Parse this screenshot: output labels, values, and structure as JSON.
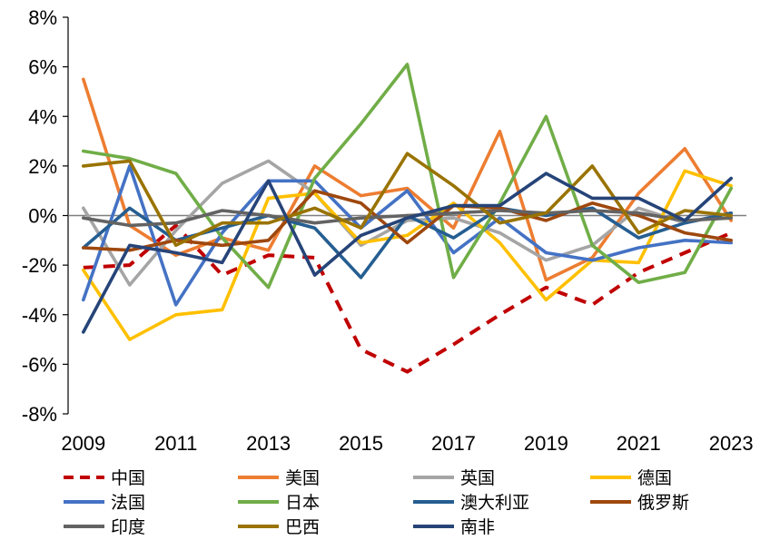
{
  "chart_data": {
    "type": "line",
    "title": "",
    "xlabel": "",
    "ylabel": "",
    "x": [
      2009,
      2010,
      2011,
      2012,
      2013,
      2014,
      2015,
      2016,
      2017,
      2018,
      2019,
      2020,
      2021,
      2022,
      2023
    ],
    "x_tick_labels": [
      "2009",
      "2011",
      "2013",
      "2015",
      "2017",
      "2019",
      "2021",
      "2023"
    ],
    "x_tick_values": [
      2009,
      2011,
      2013,
      2015,
      2017,
      2019,
      2021,
      2023
    ],
    "y_tick_values": [
      -8,
      -6,
      -4,
      -2,
      0,
      2,
      4,
      6,
      8
    ],
    "y_tick_labels": [
      "-8%",
      "-6%",
      "-4%",
      "-2%",
      "0%",
      "2%",
      "4%",
      "6%",
      "8%"
    ],
    "ylim": [
      -8,
      8
    ],
    "grid": false,
    "legend_position": "bottom",
    "series": [
      {
        "name": "中国",
        "color": "#c00000",
        "dash": "dashed",
        "values": [
          -2.1,
          -2.0,
          -0.4,
          -2.4,
          -1.6,
          -1.7,
          -5.4,
          -6.3,
          -5.2,
          -4.0,
          -2.9,
          -3.6,
          -2.3,
          -1.5,
          -0.7
        ]
      },
      {
        "name": "美国",
        "color": "#ed7d31",
        "dash": "solid",
        "values": [
          5.5,
          -0.4,
          -1.6,
          -0.9,
          -1.4,
          2.0,
          0.8,
          1.1,
          -0.5,
          3.4,
          -2.6,
          -1.7,
          0.9,
          2.7,
          -0.2
        ]
      },
      {
        "name": "英国",
        "color": "#a5a5a5",
        "dash": "solid",
        "values": [
          0.3,
          -2.8,
          -0.6,
          1.3,
          2.2,
          0.9,
          -1.2,
          -0.2,
          -0.1,
          -0.7,
          -1.8,
          -1.2,
          0.3,
          -0.3,
          0.1
        ]
      },
      {
        "name": "德国",
        "color": "#ffc000",
        "dash": "solid",
        "values": [
          -2.2,
          -5.0,
          -4.0,
          -3.8,
          0.7,
          0.9,
          -1.1,
          -0.8,
          0.5,
          -1.1,
          -3.4,
          -1.8,
          -1.9,
          1.8,
          1.2
        ]
      },
      {
        "name": "法国",
        "color": "#4472c4",
        "dash": "solid",
        "values": [
          -3.4,
          2.0,
          -3.6,
          -0.7,
          1.4,
          1.4,
          -0.5,
          1.0,
          -1.5,
          -0.1,
          -1.5,
          -1.8,
          -1.3,
          -1.0,
          -1.1
        ]
      },
      {
        "name": "日本",
        "color": "#70ad47",
        "dash": "solid",
        "values": [
          2.6,
          2.3,
          1.7,
          -0.9,
          -2.9,
          1.5,
          3.7,
          6.1,
          -2.5,
          0.5,
          4.0,
          -1.2,
          -2.7,
          -2.3,
          1.1
        ]
      },
      {
        "name": "澳大利亚",
        "color": "#255e91",
        "dash": "solid",
        "values": [
          -1.3,
          0.3,
          -1.0,
          -0.5,
          0.0,
          -0.5,
          -2.5,
          0.0,
          -0.9,
          0.3,
          0.0,
          0.3,
          -0.9,
          -0.3,
          0.1
        ]
      },
      {
        "name": "俄罗斯",
        "color": "#9e480e",
        "dash": "solid",
        "values": [
          -1.3,
          -1.4,
          -1.0,
          -1.2,
          -1.0,
          1.0,
          0.5,
          -1.1,
          0.4,
          0.3,
          -0.2,
          0.5,
          0.0,
          -0.7,
          -1.0
        ]
      },
      {
        "name": "印度",
        "color": "#636363",
        "dash": "solid",
        "values": [
          -0.1,
          -0.4,
          -0.3,
          0.2,
          0.0,
          -0.3,
          -0.1,
          0.0,
          0.1,
          0.2,
          0.1,
          0.2,
          0.1,
          -0.2,
          -0.1
        ]
      },
      {
        "name": "巴西",
        "color": "#997300",
        "dash": "solid",
        "values": [
          2.0,
          2.2,
          -1.2,
          -0.3,
          -0.3,
          0.3,
          -0.5,
          2.5,
          1.2,
          -0.3,
          0.1,
          2.0,
          -0.7,
          0.2,
          0.0
        ]
      },
      {
        "name": "南非",
        "color": "#264478",
        "dash": "solid",
        "values": [
          -4.7,
          -1.2,
          -1.5,
          -1.9,
          1.4,
          -2.4,
          -0.8,
          -0.1,
          0.4,
          0.4,
          1.7,
          0.7,
          0.7,
          -0.2,
          1.5
        ]
      }
    ]
  }
}
